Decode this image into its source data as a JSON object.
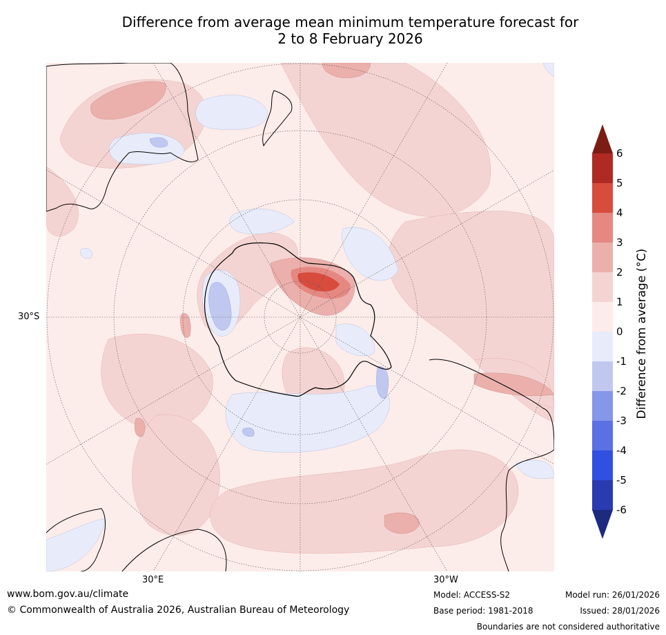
{
  "title": {
    "line1": "Difference from average mean minimum temperature forecast for",
    "line2": "2 to 8 February 2026"
  },
  "map": {
    "lat_label": "30°S",
    "lon_labels": [
      "30°E",
      "30°W"
    ],
    "colors": {
      "ocean_neutral": "#fcecea",
      "warm1": "#f4d4d2",
      "warm2": "#ebb0ac",
      "warm3": "#e58882",
      "warm4": "#d84c3e",
      "cool1": "#e8ecfa",
      "cool2": "#c0c8f0",
      "coast": "#000000"
    }
  },
  "colorbar": {
    "label": "Difference from average (°C)",
    "ticks": [
      "6",
      "5",
      "4",
      "3",
      "2",
      "1",
      "0",
      "-1",
      "-2",
      "-3",
      "-4",
      "-5",
      "-6"
    ],
    "colors": [
      "#7b1c15",
      "#b02a24",
      "#d84c3e",
      "#e58882",
      "#ebb0ac",
      "#f4d4d2",
      "#fcecea",
      "#e8ecfa",
      "#c0c8f0",
      "#8696e8",
      "#5a70e4",
      "#2f50e0",
      "#2a3ab0",
      "#1c2a80"
    ]
  },
  "footer": {
    "website": "www.bom.gov.au/climate",
    "copyright": "© Commonwealth of Australia 2026, Australian Bureau of Meteorology",
    "model": "Model: ACCESS-S2",
    "base_period": "Base period: 1981-2018",
    "model_run": "Model run: 26/01/2026",
    "issued": "Issued: 28/01/2026",
    "disclaimer": "Boundaries are not considered authoritative"
  }
}
